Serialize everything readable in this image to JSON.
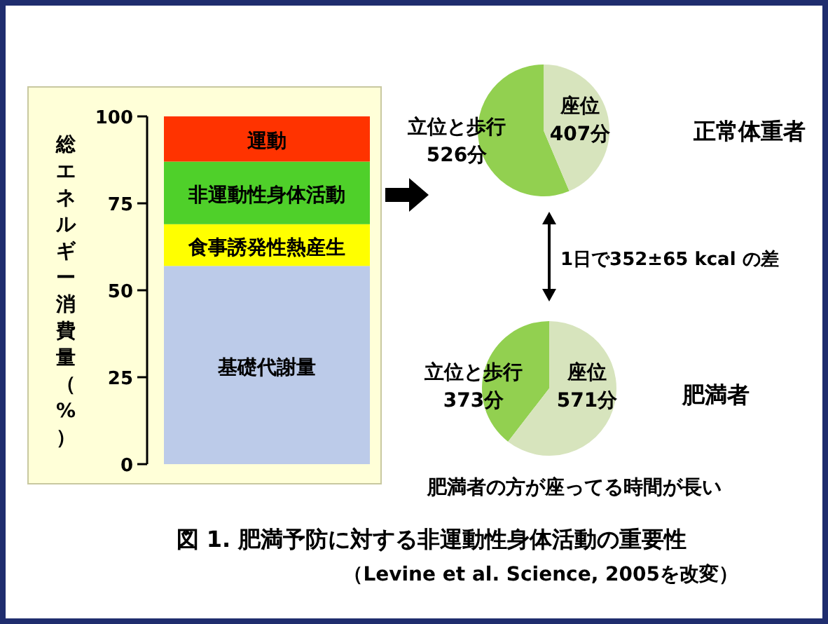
{
  "chart_data": [
    {
      "type": "bar",
      "stacked": true,
      "categories": [
        null
      ],
      "ylabel": "総エネルギー消費量（%）",
      "ylim": [
        0,
        100
      ],
      "yticks": [
        0,
        25,
        50,
        75,
        100
      ],
      "series": [
        {
          "name": "基礎代謝量",
          "color": "#bccbe9",
          "values": [
            57
          ]
        },
        {
          "name": "食事誘発性熱産生",
          "color": "#ffff00",
          "values": [
            12
          ]
        },
        {
          "name": "非運動性身体活動",
          "color": "#4fd02a",
          "values": [
            18
          ]
        },
        {
          "name": "運動",
          "color": "#ff3300",
          "values": [
            13
          ]
        }
      ],
      "annotations": [
        "図 1. 肥満予防に対する非運動性身体活動の重要性",
        "（Levine et al. Science, 2005を改変）"
      ]
    },
    {
      "type": "pie",
      "title": "正常体重者",
      "categories": [
        "立位と歩行",
        "座位"
      ],
      "values": [
        526,
        407
      ],
      "colors": [
        "#92d050",
        "#d7e4bd"
      ],
      "value_labels": [
        "526分",
        "407分"
      ],
      "annotations": [
        "1日で352±65 kcal の差"
      ]
    },
    {
      "type": "pie",
      "title": "肥満者",
      "categories": [
        "立位と歩行",
        "座位"
      ],
      "values": [
        373,
        571
      ],
      "colors": [
        "#92d050",
        "#d7e4bd"
      ],
      "value_labels": [
        "373分",
        "571分"
      ],
      "annotations": [
        "肥満者の方が座ってる時間が長い"
      ]
    }
  ]
}
